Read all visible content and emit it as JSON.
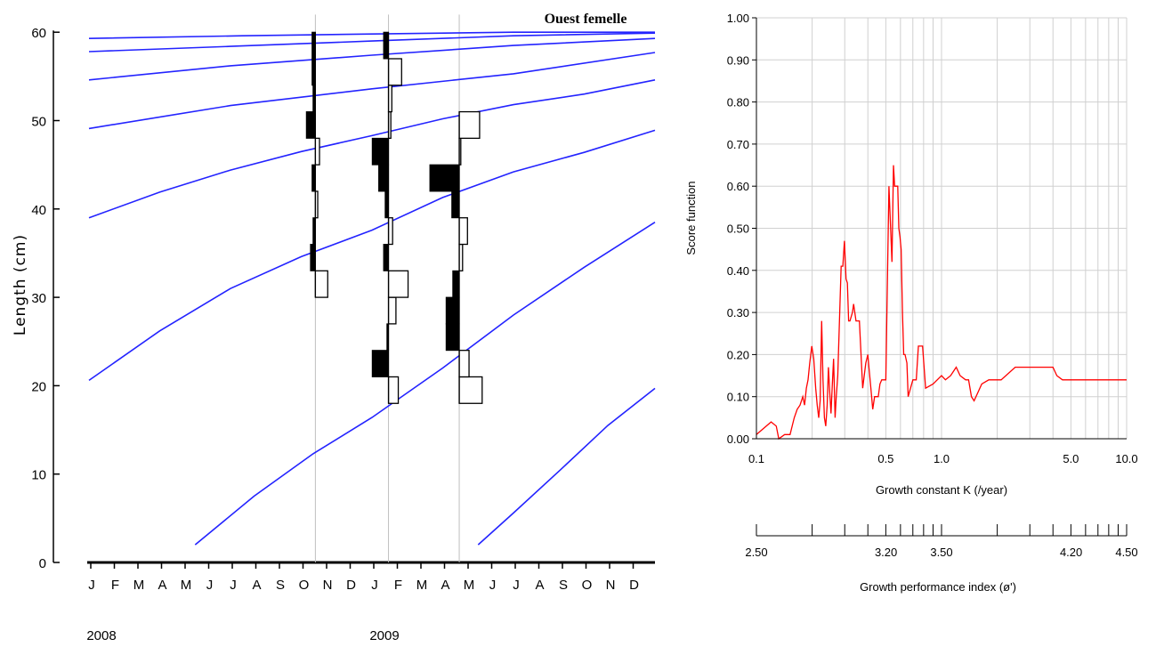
{
  "chart_data": [
    {
      "type": "line",
      "title": "Ouest femelle",
      "ylabel": "Length (cm)",
      "ylim": [
        0,
        60
      ],
      "yticks": [
        "0",
        "10",
        "20",
        "30",
        "40",
        "50",
        "60"
      ],
      "x_domain": "month index, 0 = Jan 2008, 24 = end Dec 2009",
      "xlim": [
        0,
        24
      ],
      "month_labels": [
        "J",
        "F",
        "M",
        "A",
        "M",
        "J",
        "J",
        "A",
        "S",
        "O",
        "N",
        "D",
        "J",
        "F",
        "M",
        "A",
        "M",
        "J",
        "J",
        "A",
        "S",
        "O",
        "N",
        "D"
      ],
      "year_labels": [
        "2008",
        "2009"
      ],
      "grid": false,
      "curve_color": "#2323ff",
      "growth_curves": [
        {
          "x": [
            0,
            6.5,
            12,
            18,
            24
          ],
          "y": [
            59.3,
            59.6,
            59.8,
            60.0,
            60.0
          ]
        },
        {
          "x": [
            0,
            6,
            12,
            18,
            24
          ],
          "y": [
            57.8,
            58.4,
            59.0,
            59.6,
            59.9
          ]
        },
        {
          "x": [
            0,
            6,
            12,
            18,
            24
          ],
          "y": [
            54.6,
            56.2,
            57.4,
            58.5,
            59.3
          ]
        },
        {
          "x": [
            0,
            6,
            12,
            18,
            24
          ],
          "y": [
            49.1,
            51.7,
            53.6,
            55.3,
            57.7
          ]
        },
        {
          "x": [
            0,
            3,
            6,
            9,
            12,
            15,
            18,
            21,
            24
          ],
          "y": [
            39.0,
            41.9,
            44.4,
            46.5,
            48.3,
            50.2,
            51.8,
            53.0,
            54.6
          ]
        },
        {
          "x": [
            0,
            3,
            6,
            9,
            12,
            15,
            18,
            21,
            24
          ],
          "y": [
            20.6,
            26.2,
            31.0,
            34.6,
            37.6,
            41.3,
            44.2,
            46.4,
            48.9
          ]
        },
        {
          "x": [
            4.5,
            7,
            9.5,
            12,
            15,
            18,
            21,
            24
          ],
          "y": [
            2.0,
            7.5,
            12.3,
            16.4,
            22.0,
            28.0,
            33.4,
            38.5
          ]
        },
        {
          "x": [
            16.5,
            18,
            20,
            22,
            24
          ],
          "y": [
            2.0,
            5.6,
            10.5,
            15.5,
            19.7
          ]
        }
      ],
      "samples": [
        {
          "month": 9.6,
          "histogram": [
            {
              "low": 30,
              "high": 33,
              "value": 0.63
            },
            {
              "low": 33,
              "high": 36,
              "value": -0.25
            },
            {
              "low": 36,
              "high": 39,
              "value": -0.12
            },
            {
              "low": 39,
              "high": 42,
              "value": 0.12
            },
            {
              "low": 42,
              "high": 45,
              "value": -0.17
            },
            {
              "low": 45,
              "high": 48,
              "value": 0.21
            },
            {
              "low": 48,
              "high": 51,
              "value": -0.46
            },
            {
              "low": 51,
              "high": 54,
              "value": -0.12
            },
            {
              "low": 54,
              "high": 57,
              "value": -0.17
            },
            {
              "low": 57,
              "high": 60,
              "value": -0.17
            }
          ]
        },
        {
          "month": 12.7,
          "histogram": [
            {
              "low": 18,
              "high": 21,
              "value": 0.5
            },
            {
              "low": 21,
              "high": 24,
              "value": -0.83
            },
            {
              "low": 24,
              "high": 27,
              "value": -0.08
            },
            {
              "low": 27,
              "high": 30,
              "value": 0.38
            },
            {
              "low": 30,
              "high": 33,
              "value": 1.0
            },
            {
              "low": 33,
              "high": 36,
              "value": -0.25
            },
            {
              "low": 36,
              "high": 39,
              "value": 0.21
            },
            {
              "low": 39,
              "high": 42,
              "value": -0.17
            },
            {
              "low": 42,
              "high": 45,
              "value": -0.5
            },
            {
              "low": 45,
              "high": 48,
              "value": -0.83
            },
            {
              "low": 48,
              "high": 51,
              "value": 0.12
            },
            {
              "low": 51,
              "high": 54,
              "value": 0.17
            },
            {
              "low": 54,
              "high": 57,
              "value": 0.67
            },
            {
              "low": 57,
              "high": 60,
              "value": -0.25
            }
          ]
        },
        {
          "month": 15.7,
          "histogram": [
            {
              "low": 18,
              "high": 21,
              "value": 1.17
            },
            {
              "low": 21,
              "high": 24,
              "value": 0.5
            },
            {
              "low": 24,
              "high": 27,
              "value": -0.67
            },
            {
              "low": 27,
              "high": 30,
              "value": -0.67
            },
            {
              "low": 30,
              "high": 33,
              "value": -0.33
            },
            {
              "low": 33,
              "high": 36,
              "value": 0.17
            },
            {
              "low": 36,
              "high": 39,
              "value": 0.42
            },
            {
              "low": 39,
              "high": 42,
              "value": -0.38
            },
            {
              "low": 42,
              "high": 45,
              "value": -1.5
            },
            {
              "low": 45,
              "high": 48,
              "value": 0.08
            },
            {
              "low": 48,
              "high": 51,
              "value": 1.04
            }
          ]
        }
      ]
    },
    {
      "type": "line",
      "xlabel": "Growth constant K (/year)",
      "ylabel": "Score function",
      "x_scale": "log",
      "xlim": [
        0.1,
        10.0
      ],
      "ylim": [
        0.0,
        1.0
      ],
      "xtick_labels": [
        "0.1",
        "0.5",
        "1.0",
        "5.0",
        "10.0"
      ],
      "xtick_values": [
        0.1,
        0.5,
        1.0,
        5.0,
        10.0
      ],
      "ytick_labels": [
        "0.00",
        "0.10",
        "0.20",
        "0.30",
        "0.40",
        "0.50",
        "0.60",
        "0.70",
        "0.80",
        "0.90",
        "1.00"
      ],
      "grid": true,
      "line_color": "#ff0000",
      "series": [
        {
          "x": [
            0.1,
            0.12,
            0.128,
            0.132,
            0.142,
            0.152,
            0.16,
            0.166,
            0.172,
            0.178,
            0.182,
            0.186,
            0.19,
            0.194,
            0.199,
            0.204,
            0.209,
            0.213,
            0.217,
            0.221,
            0.225,
            0.229,
            0.233,
            0.237,
            0.241,
            0.245,
            0.249,
            0.253,
            0.257,
            0.261,
            0.266,
            0.27,
            0.275,
            0.281,
            0.287,
            0.293,
            0.299,
            0.305,
            0.31,
            0.315,
            0.32,
            0.325,
            0.33,
            0.335,
            0.345,
            0.36,
            0.375,
            0.39,
            0.4,
            0.405,
            0.415,
            0.425,
            0.435,
            0.445,
            0.455,
            0.465,
            0.475,
            0.49,
            0.5,
            0.52,
            0.54,
            0.55,
            0.558,
            0.565,
            0.572,
            0.58,
            0.588,
            0.596,
            0.605,
            0.615,
            0.625,
            0.635,
            0.65,
            0.66,
            0.7,
            0.73,
            0.75,
            0.79,
            0.82,
            0.9,
            1.0,
            1.05,
            1.12,
            1.2,
            1.26,
            1.35,
            1.4,
            1.45,
            1.5,
            1.65,
            1.8,
            1.9,
            2.1,
            2.5,
            3.0,
            3.5,
            4.0,
            4.2,
            4.5,
            5.0,
            6.0,
            8.0,
            10.0
          ],
          "y": [
            0.01,
            0.04,
            0.03,
            0.0,
            0.01,
            0.01,
            0.05,
            0.07,
            0.08,
            0.1,
            0.08,
            0.12,
            0.14,
            0.18,
            0.22,
            0.19,
            0.12,
            0.08,
            0.05,
            0.09,
            0.28,
            0.14,
            0.05,
            0.03,
            0.08,
            0.17,
            0.11,
            0.06,
            0.13,
            0.19,
            0.05,
            0.1,
            0.15,
            0.28,
            0.41,
            0.41,
            0.47,
            0.38,
            0.37,
            0.28,
            0.28,
            0.29,
            0.3,
            0.32,
            0.28,
            0.28,
            0.12,
            0.18,
            0.2,
            0.17,
            0.12,
            0.07,
            0.1,
            0.1,
            0.1,
            0.13,
            0.14,
            0.14,
            0.14,
            0.6,
            0.42,
            0.65,
            0.6,
            0.6,
            0.6,
            0.6,
            0.5,
            0.48,
            0.45,
            0.3,
            0.2,
            0.2,
            0.18,
            0.1,
            0.14,
            0.14,
            0.22,
            0.22,
            0.12,
            0.13,
            0.15,
            0.14,
            0.15,
            0.17,
            0.15,
            0.14,
            0.14,
            0.1,
            0.09,
            0.13,
            0.14,
            0.14,
            0.14,
            0.17,
            0.17,
            0.17,
            0.17,
            0.15,
            0.14,
            0.14,
            0.14,
            0.14,
            0.14
          ]
        }
      ]
    },
    {
      "type": "axis",
      "xlabel": "Growth performance index (ø')",
      "xtick_labels": [
        "2.50",
        "3.20",
        "3.50",
        "4.20",
        "4.50"
      ],
      "xtick_values": [
        2.5,
        3.2,
        3.5,
        4.2,
        4.5
      ]
    }
  ]
}
